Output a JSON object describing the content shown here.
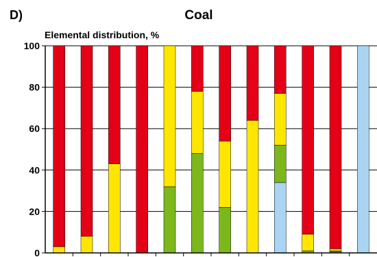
{
  "panel_label": "D)",
  "chart_data": {
    "type": "bar",
    "stacked": true,
    "title": "Coal",
    "ylabel": "Elemental distribution, %",
    "xlabel": "",
    "ylim": [
      0,
      100
    ],
    "yticks": [
      0,
      20,
      40,
      60,
      80,
      100
    ],
    "grid": true,
    "legend": "none",
    "categories": [
      "",
      "",
      "",
      "",
      "",
      "",
      "",
      "",
      "",
      "",
      "",
      ""
    ],
    "series": [
      {
        "color": "#a9d4f2",
        "values": [
          0,
          0,
          0,
          0,
          0,
          0,
          0,
          0,
          34,
          0,
          0.5,
          100
        ]
      },
      {
        "color": "#7cb81c",
        "values": [
          0,
          0,
          0,
          0,
          32,
          48,
          22,
          0,
          18,
          1,
          0.5,
          0
        ]
      },
      {
        "color": "#ffe600",
        "values": [
          3,
          8,
          43,
          0,
          68,
          30,
          32,
          64,
          25,
          8,
          1,
          0
        ]
      },
      {
        "color": "#e40016",
        "values": [
          97,
          92,
          57,
          100,
          0,
          22,
          46,
          36,
          23,
          91,
          98,
          0
        ]
      }
    ]
  }
}
